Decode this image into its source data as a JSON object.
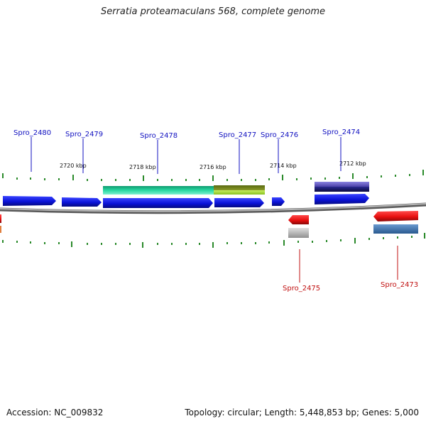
{
  "title": "Serratia proteamaculans 568, complete genome",
  "footer": {
    "accession": "Accession: NC_009832",
    "summary": "Topology: circular; Length: 5,448,853 bp; Genes: 5,000"
  },
  "scale_labels": [
    "2720 kbp",
    "2718 kbp",
    "2716 kbp",
    "2714 kbp",
    "2712 kbp"
  ],
  "genes_forward": [
    "Spro_2480",
    "Spro_2479",
    "Spro_2478",
    "Spro_2477",
    "Spro_2476",
    "Spro_2474"
  ],
  "genes_reverse": [
    "Spro_2475",
    "Spro_2473"
  ],
  "colors": {
    "forward_gene": "#0a12d8",
    "reverse_gene": "#e81010",
    "label_forward": "#1010c0",
    "label_reverse": "#c01010",
    "tick": "#2a8a2a",
    "backbone": "#8a8a8a",
    "cds_teal": "#28d8a0",
    "cds_olive": "#7a8a1a",
    "cds_lime": "#a8e030",
    "cds_purple": "#6a60c8",
    "cds_navy": "#141468",
    "cds_steel": "#4a80b8",
    "cds_gray": "#b8b8b8"
  }
}
